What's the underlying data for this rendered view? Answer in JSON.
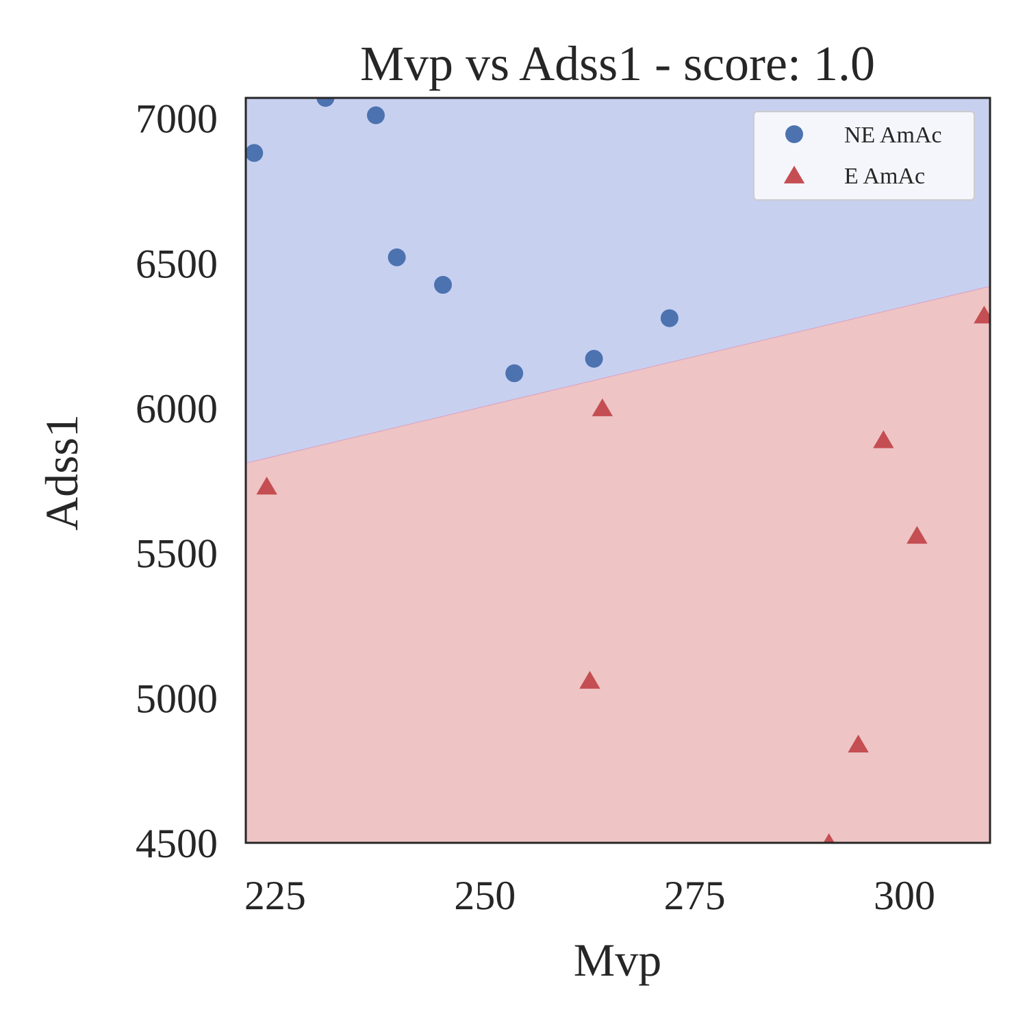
{
  "chart_data": {
    "type": "scatter",
    "title": "Mvp vs Adss1 - score: 1.0",
    "xlabel": "Mvp",
    "ylabel": "Adss1",
    "xlim": [
      221.5,
      310.2
    ],
    "ylim": [
      4500,
      7070
    ],
    "xticks": [
      "225",
      "250",
      "275",
      "300"
    ],
    "yticks": [
      "4500",
      "5000",
      "5500",
      "6000",
      "6500",
      "7000"
    ],
    "grid": false,
    "legend_position": "top-right",
    "decision_boundary": {
      "x": [
        221.5,
        310.2
      ],
      "y": [
        5810,
        6420
      ],
      "region_above_color": "#c8d0f0",
      "region_below_color": "#eec4c4"
    },
    "series": [
      {
        "name": "NE AmAc",
        "marker": "circle",
        "color": "#4c72b0",
        "points": [
          [
            222.5,
            6880
          ],
          [
            231.0,
            7070
          ],
          [
            237.0,
            7010
          ],
          [
            239.5,
            6520
          ],
          [
            245.0,
            6425
          ],
          [
            253.5,
            6120
          ],
          [
            263.0,
            6170
          ],
          [
            272.0,
            6310
          ]
        ]
      },
      {
        "name": "E AmAc",
        "marker": "triangle",
        "color": "#c44e52",
        "points": [
          [
            224.0,
            5730
          ],
          [
            264.0,
            6000
          ],
          [
            262.5,
            5060
          ],
          [
            297.5,
            5890
          ],
          [
            301.5,
            5560
          ],
          [
            294.5,
            4840
          ],
          [
            291.0,
            4500
          ],
          [
            309.5,
            6320
          ]
        ]
      }
    ]
  }
}
